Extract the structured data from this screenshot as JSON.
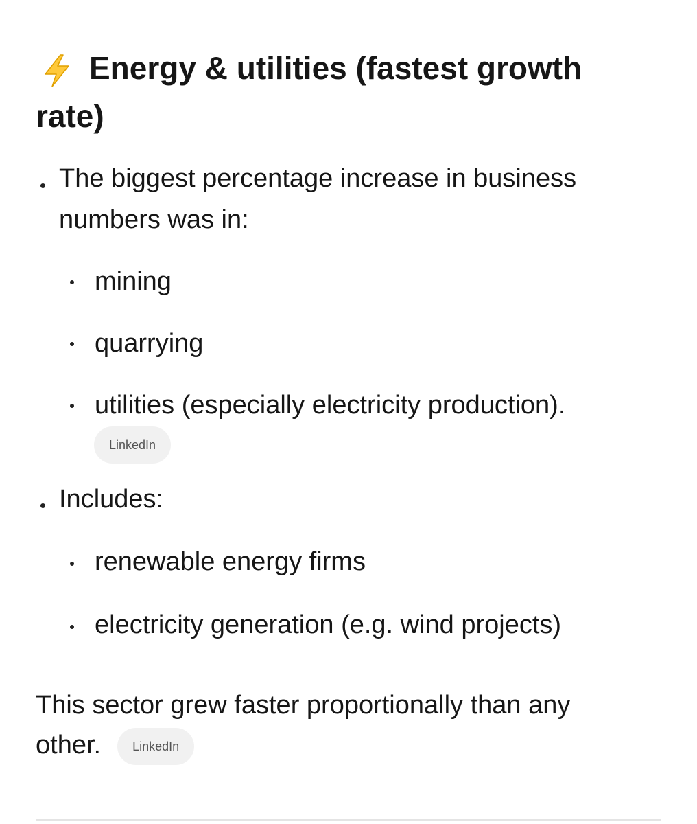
{
  "heading": {
    "text": "Energy & utilities (fastest growth rate)"
  },
  "list": [
    {
      "text": "The biggest percentage increase in business numbers was in:",
      "items": [
        "mining",
        "quarrying",
        "utilities (especially electricity production)."
      ],
      "source": "LinkedIn"
    },
    {
      "text": "Includes:",
      "items": [
        "renewable energy firms",
        "electricity generation (e.g. wind projects)"
      ]
    }
  ],
  "paragraph": {
    "text": "This sector grew faster proportionally than any other.",
    "source": "LinkedIn"
  }
}
